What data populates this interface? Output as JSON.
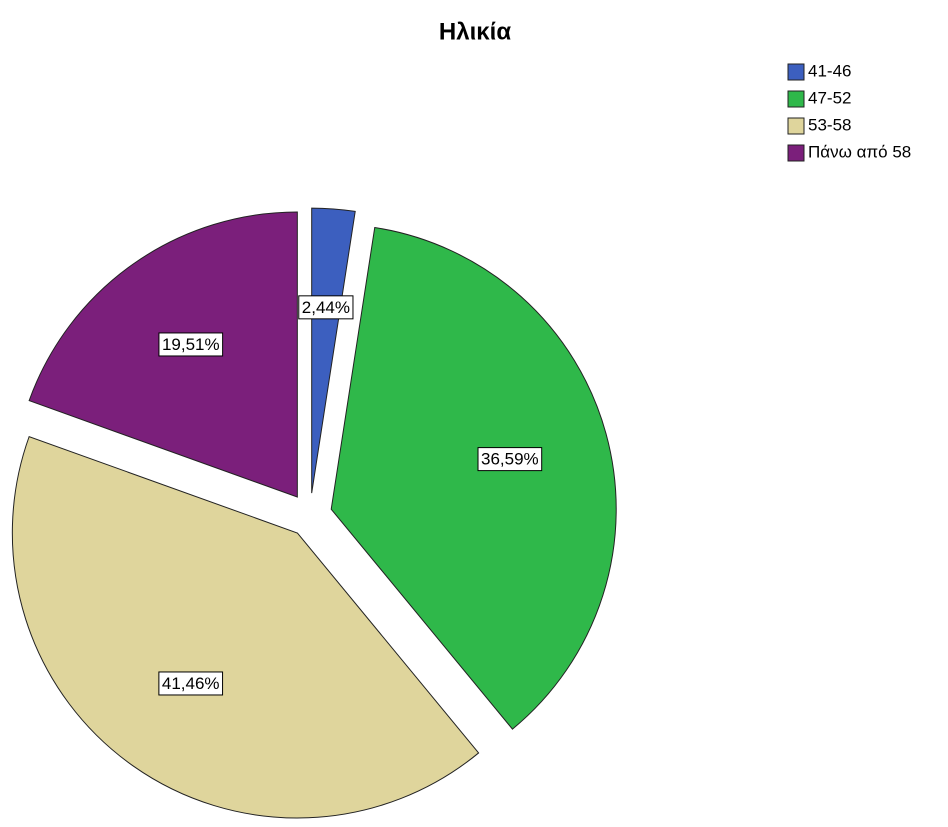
{
  "chart_data": {
    "type": "pie",
    "title": "Ηλικία",
    "categories": [
      "41-46",
      "47-52",
      "53-58",
      "Πάνω από 58"
    ],
    "values": [
      2.44,
      36.59,
      41.46,
      19.51
    ],
    "value_labels": [
      "2,44%",
      "36,59%",
      "41,46%",
      "19,51%"
    ],
    "colors": [
      "#3c5fbf",
      "#2fb84a",
      "#dfd59c",
      "#7b1f7b"
    ],
    "legend": "top-right"
  }
}
